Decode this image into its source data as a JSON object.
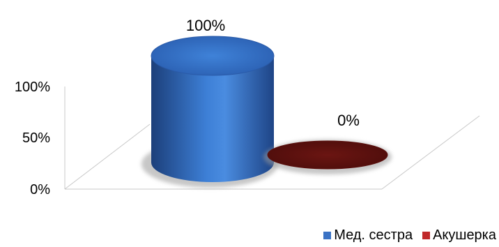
{
  "chart_data": {
    "type": "bar",
    "style": "3d-cylinder",
    "categories": [
      "Мед. сестра",
      "Акушерка"
    ],
    "values": [
      100,
      0
    ],
    "data_labels": [
      "100%",
      "0%"
    ],
    "colors": [
      "#3a72c4",
      "#7a1a17"
    ],
    "yticks": [
      "0%",
      "50%",
      "100%"
    ],
    "ylim": [
      0,
      100
    ],
    "grid": false,
    "legend_position": "bottom-right",
    "legend": [
      "Мед. сестра",
      "Акушерка"
    ]
  }
}
